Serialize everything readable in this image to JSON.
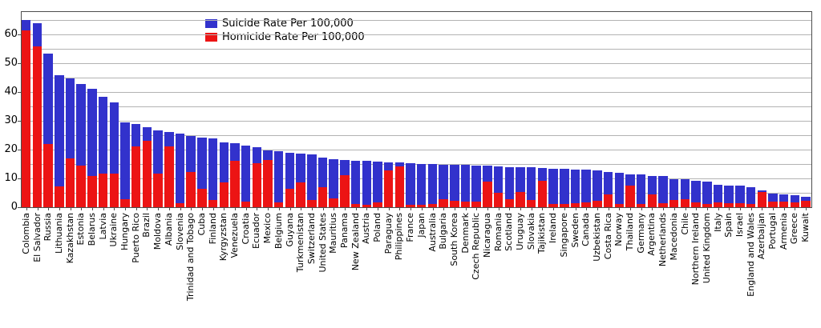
{
  "legend": {
    "items": [
      {
        "label": "Suicide Rate Per 100,000",
        "color": "#3232cc"
      },
      {
        "label": "Homicide Rate Per 100,000",
        "color": "#ec1414"
      }
    ]
  },
  "axes": {
    "y_tick_labels": [
      "0",
      "10",
      "20",
      "30",
      "40",
      "50",
      "60"
    ]
  },
  "chart_data": {
    "type": "bar",
    "stacked": true,
    "title": "",
    "xlabel": "",
    "ylabel": "",
    "ylim": [
      0,
      68
    ],
    "y_ticks": [
      0,
      10,
      20,
      30,
      40,
      50,
      60
    ],
    "gridline_step": 5,
    "grid": true,
    "legend_position": "top-center",
    "categories": [
      "Colombia",
      "El Salvador",
      "Russia",
      "Lithuania",
      "Kazakhstan",
      "Estonia",
      "Belarus",
      "Latvia",
      "Ukraine",
      "Hungary",
      "Puerto Rico",
      "Brazil",
      "Moldova",
      "Albania",
      "Slovenia",
      "Trinidad and Tobago",
      "Cuba",
      "Finland",
      "Kyrgyzstan",
      "Venezuela",
      "Croatia",
      "Ecuador",
      "Mexico",
      "Belgium",
      "Guyana",
      "Turkmenistan",
      "Switzerland",
      "United States",
      "Mauritius",
      "Panama",
      "New Zealand",
      "Austria",
      "Poland",
      "Paraguay",
      "Philippines",
      "France",
      "Japan",
      "Australia",
      "Bulgaria",
      "South Korea",
      "Denmark",
      "Czech Republic",
      "Nicaragua",
      "Romania",
      "Scotland",
      "Uruguay",
      "Slovakia",
      "Tajikistan",
      "Ireland",
      "Singapore",
      "Sweden",
      "Canada",
      "Uzbekistan",
      "Costa Rica",
      "Norway",
      "Thailand",
      "Germany",
      "Argentina",
      "Netherlands",
      "Macedonia",
      "Chile",
      "Northern Ireland",
      "United Kingdom",
      "Italy",
      "Spain",
      "Israel",
      "England and Wales",
      "Azerbaijan",
      "Portugal",
      "Armenia",
      "Greece",
      "Kuwait"
    ],
    "series": [
      {
        "name": "Homicide Rate Per 100,000",
        "color": "#ec1414",
        "stack_order": "bottom",
        "values": [
          61.4,
          55.8,
          21.8,
          7.3,
          17.0,
          14.5,
          10.7,
          11.7,
          11.7,
          2.8,
          21.0,
          23.1,
          11.6,
          21.2,
          1.3,
          12.2,
          6.3,
          2.4,
          8.7,
          16.0,
          1.9,
          15.4,
          16.3,
          1.7,
          6.4,
          8.6,
          2.6,
          6.9,
          3.0,
          11.0,
          1.1,
          0.9,
          1.8,
          12.7,
          14.1,
          0.7,
          0.7,
          1.2,
          2.7,
          2.3,
          1.9,
          2.0,
          8.9,
          4.9,
          2.9,
          5.4,
          2.6,
          9.2,
          1.0,
          1.2,
          1.5,
          1.7,
          2.2,
          4.5,
          1.2,
          7.5,
          1.1,
          4.5,
          1.3,
          2.4,
          2.9,
          1.6,
          1.1,
          1.8,
          1.3,
          1.5,
          1.1,
          5.4,
          1.9,
          1.9,
          1.6,
          2.1
        ]
      },
      {
        "name": "Suicide Rate Per 100,000",
        "color": "#3232cc",
        "stack_order": "top",
        "values": [
          3.6,
          7.9,
          31.5,
          38.4,
          27.8,
          28.3,
          30.4,
          26.7,
          24.7,
          26.6,
          7.9,
          4.6,
          15.1,
          4.9,
          24.3,
          12.5,
          17.9,
          21.4,
          13.9,
          6.1,
          19.4,
          5.3,
          3.3,
          17.6,
          12.5,
          10.1,
          15.8,
          10.4,
          13.6,
          5.3,
          15.1,
          15.1,
          14.1,
          2.9,
          1.4,
          14.5,
          14.3,
          13.7,
          12.1,
          12.4,
          12.7,
          12.5,
          5.4,
          9.2,
          11.1,
          8.5,
          11.2,
          4.5,
          12.4,
          12.1,
          11.6,
          11.3,
          10.5,
          7.7,
          10.7,
          4.0,
          10.3,
          6.4,
          9.4,
          7.4,
          6.7,
          7.6,
          7.7,
          5.9,
          6.2,
          5.9,
          5.8,
          0.5,
          2.9,
          2.6,
          2.6,
          1.6
        ]
      }
    ]
  }
}
